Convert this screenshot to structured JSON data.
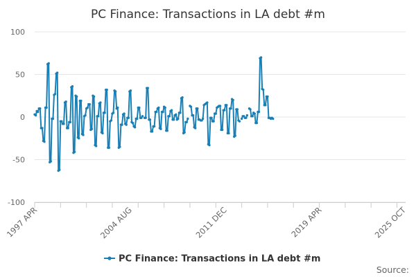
{
  "chart_data": {
    "type": "line",
    "title": "PC Finance: Transactions in LA debt #m",
    "xlabel": "",
    "ylabel": "",
    "ylim": [
      -100,
      100
    ],
    "yticks": [
      100,
      50,
      0,
      -50,
      -100
    ],
    "x_range": [
      "1997-04",
      "2025-12"
    ],
    "xtick_labels": [
      {
        "label": "1997 APR",
        "x": "1997-04"
      },
      {
        "label": "2004 AUG",
        "x": "2004-08"
      },
      {
        "label": "2011 DEC",
        "x": "2011-12"
      },
      {
        "label": "2019 APR",
        "x": "2019-04"
      },
      {
        "label": "2025 OCT",
        "x": "2025-10"
      }
    ],
    "grid": "horizontal",
    "legend": "bottom-center",
    "source": "Source:",
    "series": [
      {
        "name": "PC Finance: Transactions in LA debt #m",
        "color": "#1a7fb5",
        "points": [
          [
            "1997-04",
            3
          ],
          [
            "1997-05",
            2
          ],
          [
            "1997-06",
            7
          ],
          [
            "1997-07",
            6
          ],
          [
            "1997-08",
            10
          ],
          [
            "1997-09",
            10
          ],
          [
            "1997-10",
            -13
          ],
          [
            "1997-11",
            -13
          ],
          [
            "1997-12",
            -28
          ],
          [
            "1998-01",
            -29
          ],
          [
            "1998-02",
            11
          ],
          [
            "1998-03",
            11
          ],
          [
            "1998-04",
            62
          ],
          [
            "1998-05",
            63
          ],
          [
            "1998-06",
            -53
          ],
          [
            "1998-07",
            -52
          ],
          [
            "1998-08",
            -2
          ],
          [
            "1998-09",
            -2
          ],
          [
            "1998-10",
            26
          ],
          [
            "1998-11",
            27
          ],
          [
            "1998-12",
            51
          ],
          [
            "1999-01",
            52
          ],
          [
            "1999-02",
            -63
          ],
          [
            "1999-03",
            -62
          ],
          [
            "1999-04",
            -5
          ],
          [
            "1999-05",
            -5
          ],
          [
            "1999-06",
            -8
          ],
          [
            "1999-07",
            -8
          ],
          [
            "1999-08",
            17
          ],
          [
            "1999-09",
            18
          ],
          [
            "1999-10",
            -13
          ],
          [
            "1999-11",
            -13
          ],
          [
            "1999-12",
            -6
          ],
          [
            "2000-01",
            -6
          ],
          [
            "2000-02",
            35
          ],
          [
            "2000-03",
            36
          ],
          [
            "2000-04",
            -42
          ],
          [
            "2000-05",
            -41
          ],
          [
            "2000-06",
            25
          ],
          [
            "2000-07",
            24
          ],
          [
            "2000-08",
            -24
          ],
          [
            "2000-09",
            -25
          ],
          [
            "2000-10",
            19
          ],
          [
            "2000-11",
            19
          ],
          [
            "2000-12",
            -20
          ],
          [
            "2001-01",
            -21
          ],
          [
            "2001-02",
            1
          ],
          [
            "2001-03",
            2
          ],
          [
            "2001-04",
            10
          ],
          [
            "2001-05",
            11
          ],
          [
            "2001-06",
            15
          ],
          [
            "2001-07",
            15
          ],
          [
            "2001-08",
            -15
          ],
          [
            "2001-09",
            -14
          ],
          [
            "2001-10",
            25
          ],
          [
            "2001-11",
            24
          ],
          [
            "2001-12",
            -33
          ],
          [
            "2002-01",
            -34
          ],
          [
            "2002-02",
            1
          ],
          [
            "2002-03",
            1
          ],
          [
            "2002-04",
            16
          ],
          [
            "2002-05",
            17
          ],
          [
            "2002-06",
            -18
          ],
          [
            "2002-07",
            -19
          ],
          [
            "2002-08",
            5
          ],
          [
            "2002-09",
            5
          ],
          [
            "2002-10",
            32
          ],
          [
            "2002-11",
            32
          ],
          [
            "2002-12",
            -36
          ],
          [
            "2003-01",
            -36
          ],
          [
            "2003-02",
            -5
          ],
          [
            "2003-03",
            -4
          ],
          [
            "2003-04",
            4
          ],
          [
            "2003-05",
            5
          ],
          [
            "2003-06",
            31
          ],
          [
            "2003-07",
            30
          ],
          [
            "2003-08",
            10
          ],
          [
            "2003-09",
            11
          ],
          [
            "2003-10",
            -36
          ],
          [
            "2003-11",
            -35
          ],
          [
            "2003-12",
            -9
          ],
          [
            "2004-01",
            -9
          ],
          [
            "2004-02",
            3
          ],
          [
            "2004-03",
            4
          ],
          [
            "2004-04",
            -8
          ],
          [
            "2004-05",
            -9
          ],
          [
            "2004-06",
            -1
          ],
          [
            "2004-07",
            -1
          ],
          [
            "2004-08",
            30
          ],
          [
            "2004-09",
            31
          ],
          [
            "2004-10",
            -6
          ],
          [
            "2004-11",
            -7
          ],
          [
            "2004-12",
            -11
          ],
          [
            "2005-01",
            -12
          ],
          [
            "2005-02",
            -2
          ],
          [
            "2005-03",
            -2
          ],
          [
            "2005-04",
            11
          ],
          [
            "2005-05",
            11
          ],
          [
            "2005-06",
            -1
          ],
          [
            "2005-07",
            -1
          ],
          [
            "2005-08",
            1
          ],
          [
            "2005-09",
            null
          ],
          [
            "2005-10",
            -1
          ],
          [
            "2005-11",
            -1
          ],
          [
            "2005-12",
            34
          ],
          [
            "2006-01",
            34
          ],
          [
            "2006-02",
            -3
          ],
          [
            "2006-03",
            -3
          ],
          [
            "2006-04",
            -17
          ],
          [
            "2006-05",
            -17
          ],
          [
            "2006-06",
            -11
          ],
          [
            "2006-07",
            -11
          ],
          [
            "2006-08",
            6
          ],
          [
            "2006-09",
            6
          ],
          [
            "2006-10",
            10
          ],
          [
            "2006-11",
            11
          ],
          [
            "2006-12",
            -13
          ],
          [
            "2007-01",
            -14
          ],
          [
            "2007-02",
            6
          ],
          [
            "2007-03",
            6
          ],
          [
            "2007-04",
            12
          ],
          [
            "2007-05",
            11
          ],
          [
            "2007-06",
            -16
          ],
          [
            "2007-07",
            -16
          ],
          [
            "2007-08",
            1
          ],
          [
            "2007-09",
            1
          ],
          [
            "2007-10",
            7
          ],
          [
            "2007-11",
            8
          ],
          [
            "2007-12",
            -3
          ],
          [
            "2008-01",
            -3
          ],
          [
            "2008-02",
            2
          ],
          [
            "2008-03",
            3
          ],
          [
            "2008-04",
            -3
          ],
          [
            "2008-05",
            -2
          ],
          [
            "2008-06",
            5
          ],
          [
            "2008-07",
            5
          ],
          [
            "2008-08",
            22
          ],
          [
            "2008-09",
            23
          ],
          [
            "2008-10",
            -19
          ],
          [
            "2008-11",
            -18
          ],
          [
            "2008-12",
            -6
          ],
          [
            "2009-01",
            -6
          ],
          [
            "2009-02",
            -2
          ],
          [
            "2009-03",
            null
          ],
          [
            "2009-04",
            13
          ],
          [
            "2009-05",
            12
          ],
          [
            "2009-06",
            2
          ],
          [
            "2009-07",
            2
          ],
          [
            "2009-08",
            -12
          ],
          [
            "2009-09",
            -13
          ],
          [
            "2009-10",
            10
          ],
          [
            "2009-11",
            10
          ],
          [
            "2009-12",
            -3
          ],
          [
            "2010-01",
            -3
          ],
          [
            "2010-02",
            -4
          ],
          [
            "2010-03",
            -4
          ],
          [
            "2010-04",
            -2
          ],
          [
            "2010-05",
            14
          ],
          [
            "2010-06",
            15
          ],
          [
            "2010-07",
            16
          ],
          [
            "2010-08",
            17
          ],
          [
            "2010-09",
            -32
          ],
          [
            "2010-10",
            -33
          ],
          [
            "2010-11",
            -1
          ],
          [
            "2010-12",
            -1
          ],
          [
            "2011-01",
            -5
          ],
          [
            "2011-02",
            -5
          ],
          [
            "2011-03",
            4
          ],
          [
            "2011-04",
            4
          ],
          [
            "2011-05",
            11
          ],
          [
            "2011-06",
            12
          ],
          [
            "2011-07",
            13
          ],
          [
            "2011-08",
            13
          ],
          [
            "2011-09",
            -15
          ],
          [
            "2011-10",
            -15
          ],
          [
            "2011-11",
            8
          ],
          [
            "2011-12",
            8
          ],
          [
            "2012-01",
            14
          ],
          [
            "2012-02",
            14
          ],
          [
            "2012-03",
            -19
          ],
          [
            "2012-04",
            -19
          ],
          [
            "2012-05",
            10
          ],
          [
            "2012-06",
            10
          ],
          [
            "2012-07",
            21
          ],
          [
            "2012-08",
            20
          ],
          [
            "2012-09",
            -23
          ],
          [
            "2012-10",
            -22
          ],
          [
            "2012-11",
            9
          ],
          [
            "2012-12",
            9
          ],
          [
            "2013-01",
            -4
          ],
          [
            "2013-02",
            -5
          ],
          [
            "2013-03",
            null
          ],
          [
            "2013-04",
            -2
          ],
          [
            "2013-05",
            1
          ],
          [
            "2013-06",
            1
          ],
          [
            "2013-07",
            -1
          ],
          [
            "2013-08",
            -1
          ],
          [
            "2013-09",
            2
          ],
          [
            "2013-10",
            null
          ],
          [
            "2013-11",
            10
          ],
          [
            "2013-12",
            9
          ],
          [
            "2014-01",
            1
          ],
          [
            "2014-02",
            1
          ],
          [
            "2014-03",
            5
          ],
          [
            "2014-04",
            4
          ],
          [
            "2014-05",
            -7
          ],
          [
            "2014-06",
            -7
          ],
          [
            "2014-07",
            6
          ],
          [
            "2014-08",
            6
          ],
          [
            "2014-09",
            69
          ],
          [
            "2014-10",
            70
          ],
          [
            "2014-11",
            33
          ],
          [
            "2014-12",
            32
          ],
          [
            "2015-01",
            14
          ],
          [
            "2015-02",
            14
          ],
          [
            "2015-03",
            24
          ],
          [
            "2015-04",
            24
          ],
          [
            "2015-05",
            -1
          ],
          [
            "2015-06",
            -1
          ],
          [
            "2015-07",
            -2
          ],
          [
            "2015-08",
            -1
          ],
          [
            "2015-09",
            -2
          ]
        ]
      }
    ]
  }
}
